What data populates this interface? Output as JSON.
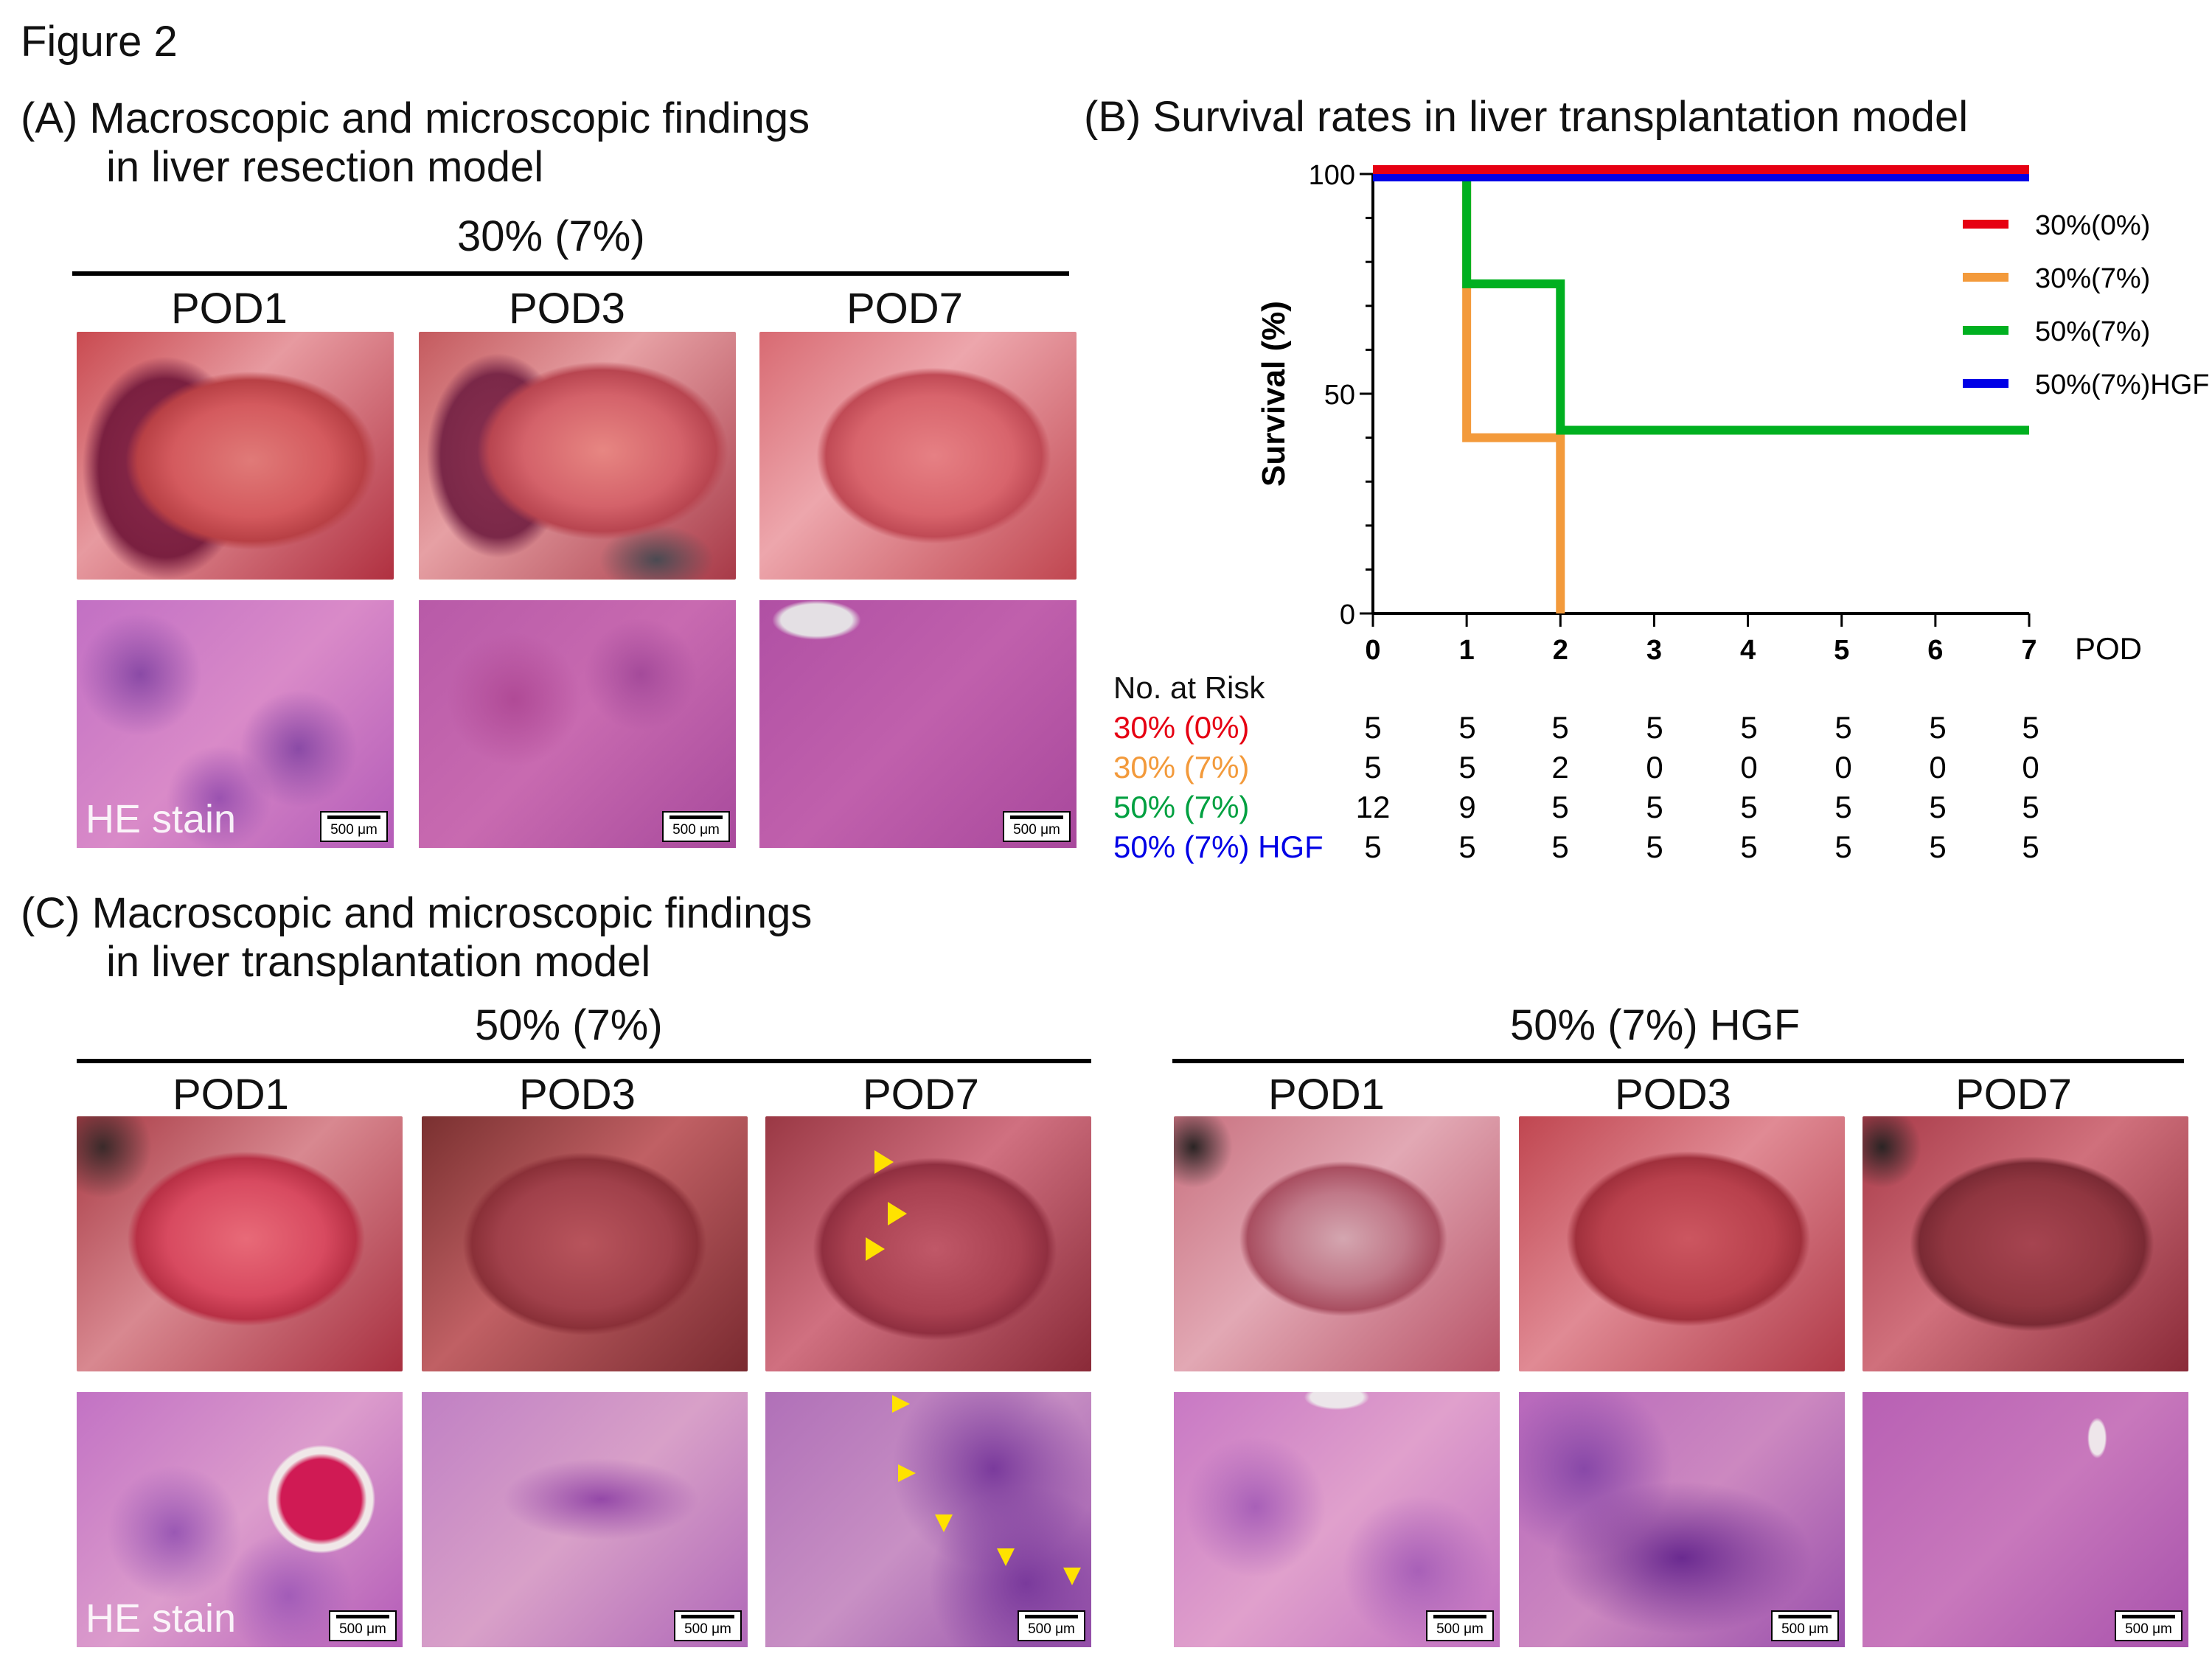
{
  "figure_title": "Figure 2",
  "panel_a": {
    "heading_line1": "(A) Macroscopic and microscopic findings",
    "heading_line2": "in liver resection model",
    "group_label": "30% (7%)",
    "columns": [
      "POD1",
      "POD3",
      "POD7"
    ],
    "he_label": "HE stain",
    "scale_label": "500 μm"
  },
  "panel_b": {
    "heading": "(B) Survival rates in liver transplantation model",
    "risk_header": "No. at Risk",
    "risk_rows": [
      {
        "label": "30% (0%)",
        "color": "#e60012",
        "values": [
          "5",
          "5",
          "5",
          "5",
          "5",
          "5",
          "5",
          "5"
        ]
      },
      {
        "label": "30% (7%)",
        "color": "#f39a3b",
        "values": [
          "5",
          "5",
          "2",
          "0",
          "0",
          "0",
          "0",
          "0"
        ]
      },
      {
        "label": "50% (7%)",
        "color": "#00a040",
        "values": [
          "12",
          "9",
          "5",
          "5",
          "5",
          "5",
          "5",
          "5"
        ]
      },
      {
        "label": "50% (7%) HGF",
        "color": "#0000e6",
        "values": [
          "5",
          "5",
          "5",
          "5",
          "5",
          "5",
          "5",
          "5"
        ]
      }
    ]
  },
  "chart_data": {
    "type": "line",
    "title": "",
    "xlabel": "POD",
    "ylabel": "Survival (%)",
    "xlim": [
      0,
      7
    ],
    "ylim": [
      0,
      100
    ],
    "xticks": [
      "0",
      "1",
      "2",
      "3",
      "4",
      "5",
      "6",
      "7"
    ],
    "yticks": [
      "0",
      "50",
      "100"
    ],
    "step": true,
    "legend_position": "top-right",
    "series": [
      {
        "name": "30%(0%)",
        "color": "#e60012",
        "x": [
          0,
          7
        ],
        "y": [
          100,
          100
        ]
      },
      {
        "name": "30%(7%)",
        "color": "#f39a3b",
        "x": [
          0,
          1,
          1,
          2,
          2
        ],
        "y": [
          100,
          100,
          40,
          40,
          0
        ]
      },
      {
        "name": "50%(7%)",
        "color": "#00b020",
        "x": [
          1,
          1,
          2,
          2,
          7
        ],
        "y": [
          100,
          75,
          75,
          41.7,
          41.7
        ]
      },
      {
        "name": "50%(7%)HGF",
        "color": "#0000e6",
        "x": [
          0,
          7
        ],
        "y": [
          100,
          100
        ]
      }
    ]
  },
  "panel_c": {
    "heading_line1": "(C) Macroscopic and microscopic findings",
    "heading_line2": "in liver transplantation model",
    "group_left": "50% (7%)",
    "group_right": "50% (7%) HGF",
    "columns": [
      "POD1",
      "POD3",
      "POD7"
    ],
    "he_label": "HE stain",
    "scale_label": "500 μm"
  }
}
